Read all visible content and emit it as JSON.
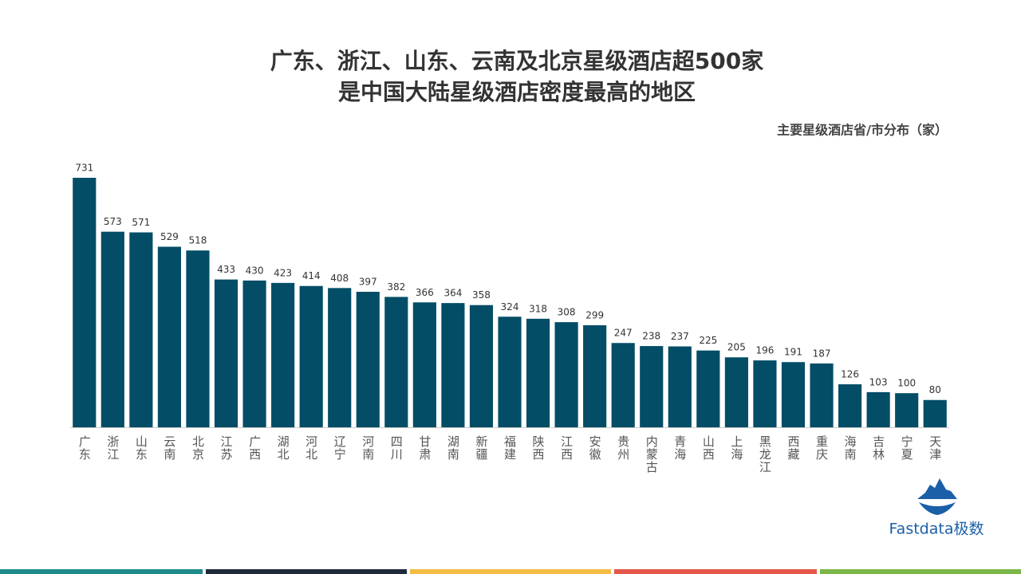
{
  "chart_data": {
    "type": "bar",
    "title": [
      "广东、浙江、山东、云南及北京星级酒店超500家",
      "是中国大陆星级酒店密度最高的地区"
    ],
    "subtitle": "主要星级酒店省/市分布（家）",
    "categories": [
      "广东",
      "浙江",
      "山东",
      "云南",
      "北京",
      "江苏",
      "广西",
      "湖北",
      "河北",
      "辽宁",
      "河南",
      "四川",
      "甘肃",
      "湖南",
      "新疆",
      "福建",
      "陕西",
      "江西",
      "安徽",
      "贵州",
      "内蒙古",
      "青海",
      "山西",
      "上海",
      "黑龙江",
      "西藏",
      "重庆",
      "海南",
      "吉林",
      "宁夏",
      "天津"
    ],
    "values": [
      731,
      573,
      571,
      529,
      518,
      433,
      430,
      423,
      414,
      408,
      397,
      382,
      366,
      364,
      358,
      324,
      318,
      308,
      299,
      247,
      238,
      237,
      225,
      205,
      196,
      191,
      187,
      126,
      103,
      100,
      80
    ],
    "color": "#034d66"
  },
  "logo": "Fastdata极数"
}
